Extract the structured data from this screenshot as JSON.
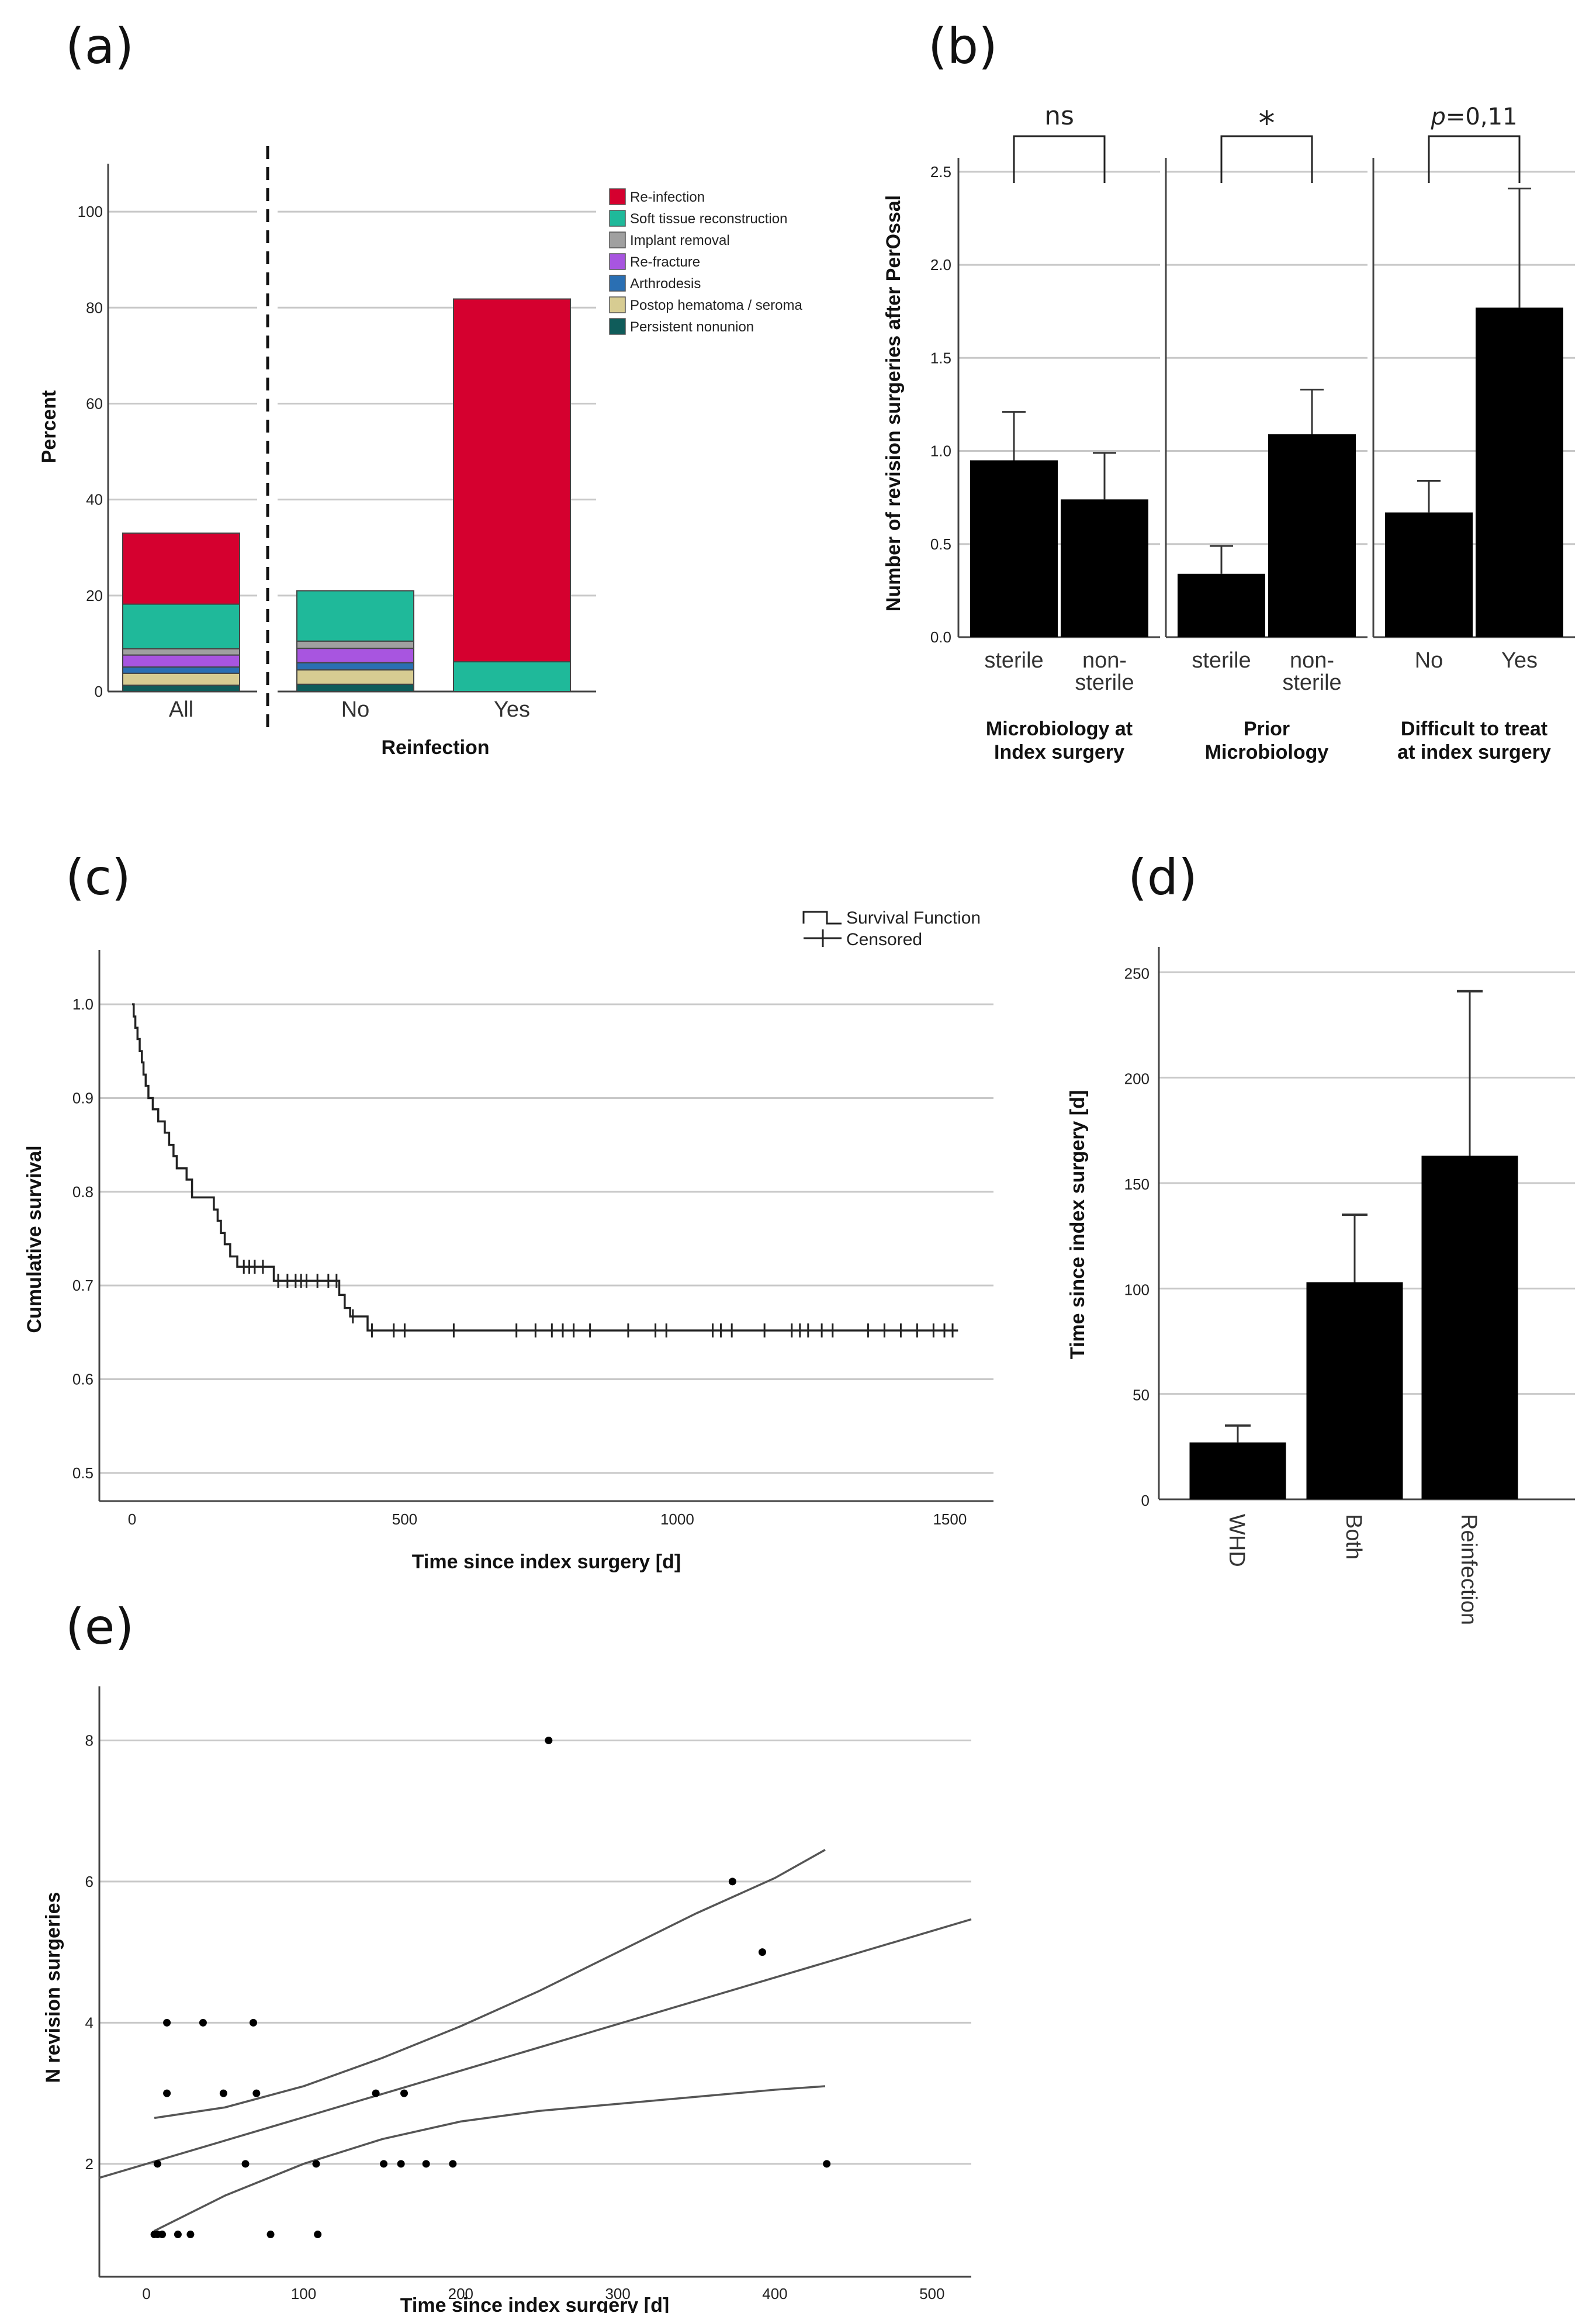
{
  "panels": {
    "a": {
      "letter": "(a)",
      "chart_data": {
        "type": "bar",
        "stacked": true,
        "categories": [
          "All",
          "No",
          "Yes"
        ],
        "group_label": "Reinfection",
        "ylabel": "Percent",
        "ylim": [
          0,
          110
        ],
        "yticks": [
          0,
          20,
          40,
          60,
          80,
          100
        ],
        "legend_placement": "top-right",
        "series": [
          {
            "name": "Persistent nonunion",
            "color": "#0f5c5a",
            "values": [
              1.3,
              1.5,
              0
            ]
          },
          {
            "name": "Postop hematoma / seroma",
            "color": "#d7cc92",
            "values": [
              2.5,
              3.0,
              0
            ]
          },
          {
            "name": "Arthrodesis",
            "color": "#2a6fb3",
            "values": [
              1.3,
              1.5,
              0
            ]
          },
          {
            "name": "Re-fracture",
            "color": "#a855e0",
            "values": [
              2.5,
              3.0,
              0
            ]
          },
          {
            "name": "Implant removal",
            "color": "#a0a0a0",
            "values": [
              1.3,
              1.5,
              0
            ]
          },
          {
            "name": "Soft tissue reconstruction",
            "color": "#1fb99a",
            "values": [
              9.3,
              10.5,
              6.2
            ]
          },
          {
            "name": "Re-infection",
            "color": "#d5002f",
            "values": [
              14.8,
              0,
              75.6
            ]
          }
        ]
      }
    },
    "b": {
      "letter": "(b)",
      "chart_data": {
        "type": "bar",
        "ylabel": "Number of revision surgeries after PerOssal",
        "ylim": [
          0,
          2.6
        ],
        "yticks": [
          "0.0",
          "0.5",
          "1.0",
          "1.5",
          "2.0",
          "2.5"
        ],
        "groups": [
          {
            "title_lines": [
              "Microbiology at",
              "Index surgery"
            ],
            "significance": "ns",
            "bars": [
              {
                "label_lines": [
                  "sterile"
                ],
                "value": 0.95,
                "error": 0.26
              },
              {
                "label_lines": [
                  "non-",
                  "sterile"
                ],
                "value": 0.74,
                "error": 0.25
              }
            ]
          },
          {
            "title_lines": [
              "Prior",
              "Microbiology"
            ],
            "significance": "*",
            "bars": [
              {
                "label_lines": [
                  "sterile"
                ],
                "value": 0.34,
                "error": 0.15
              },
              {
                "label_lines": [
                  "non-",
                  "sterile"
                ],
                "value": 1.09,
                "error": 0.24
              }
            ]
          },
          {
            "title_lines": [
              "Difficult to treat",
              "at index surgery"
            ],
            "significance": "p=0,11",
            "bars": [
              {
                "label_lines": [
                  "No"
                ],
                "value": 0.67,
                "error": 0.17
              },
              {
                "label_lines": [
                  "Yes"
                ],
                "value": 1.77,
                "error": 0.64
              }
            ]
          }
        ]
      }
    },
    "c": {
      "letter": "(c)",
      "chart_data": {
        "type": "line",
        "subtype": "kaplan-meier",
        "xlabel": "Time since index surgery [d]",
        "ylabel": "Cumulative survival",
        "xlim": [
          -60,
          1580
        ],
        "ylim": [
          0.47,
          1.03
        ],
        "xticks": [
          0,
          500,
          1000,
          1500
        ],
        "yticks": [
          "0.5",
          "0.6",
          "0.7",
          "0.8",
          "0.9",
          "1.0"
        ],
        "legend": [
          "Survival Function",
          "Censored"
        ],
        "legend_placement": "top-right",
        "steps": [
          [
            0,
            1.0
          ],
          [
            3,
            0.987
          ],
          [
            6,
            0.975
          ],
          [
            10,
            0.963
          ],
          [
            14,
            0.95
          ],
          [
            18,
            0.938
          ],
          [
            21,
            0.925
          ],
          [
            25,
            0.913
          ],
          [
            30,
            0.9
          ],
          [
            38,
            0.888
          ],
          [
            48,
            0.875
          ],
          [
            60,
            0.863
          ],
          [
            68,
            0.85
          ],
          [
            76,
            0.838
          ],
          [
            82,
            0.825
          ],
          [
            100,
            0.813
          ],
          [
            110,
            0.794
          ],
          [
            150,
            0.781
          ],
          [
            157,
            0.769
          ],
          [
            163,
            0.756
          ],
          [
            170,
            0.744
          ],
          [
            180,
            0.731
          ],
          [
            193,
            0.72
          ],
          [
            260,
            0.705
          ],
          [
            380,
            0.69
          ],
          [
            390,
            0.676
          ],
          [
            400,
            0.667
          ],
          [
            432,
            0.652
          ],
          [
            1515,
            0.652
          ]
        ],
        "censored": [
          [
            205,
            0.72
          ],
          [
            215,
            0.72
          ],
          [
            225,
            0.72
          ],
          [
            240,
            0.72
          ],
          [
            268,
            0.705
          ],
          [
            285,
            0.705
          ],
          [
            300,
            0.705
          ],
          [
            310,
            0.705
          ],
          [
            320,
            0.705
          ],
          [
            340,
            0.705
          ],
          [
            360,
            0.705
          ],
          [
            375,
            0.705
          ],
          [
            405,
            0.667
          ],
          [
            440,
            0.652
          ],
          [
            480,
            0.652
          ],
          [
            500,
            0.652
          ],
          [
            590,
            0.652
          ],
          [
            705,
            0.652
          ],
          [
            740,
            0.652
          ],
          [
            770,
            0.652
          ],
          [
            790,
            0.652
          ],
          [
            810,
            0.652
          ],
          [
            840,
            0.652
          ],
          [
            910,
            0.652
          ],
          [
            960,
            0.652
          ],
          [
            980,
            0.652
          ],
          [
            1065,
            0.652
          ],
          [
            1080,
            0.652
          ],
          [
            1100,
            0.652
          ],
          [
            1160,
            0.652
          ],
          [
            1210,
            0.652
          ],
          [
            1225,
            0.652
          ],
          [
            1240,
            0.652
          ],
          [
            1265,
            0.652
          ],
          [
            1285,
            0.652
          ],
          [
            1350,
            0.652
          ],
          [
            1380,
            0.652
          ],
          [
            1410,
            0.652
          ],
          [
            1440,
            0.652
          ],
          [
            1470,
            0.652
          ],
          [
            1490,
            0.652
          ],
          [
            1505,
            0.652
          ]
        ]
      }
    },
    "d": {
      "letter": "(d)",
      "chart_data": {
        "type": "bar",
        "categories": [
          "WHD",
          "Both",
          "Reinfection"
        ],
        "values": [
          27,
          103,
          163
        ],
        "errors": [
          8,
          32,
          78
        ],
        "ylabel": "Time since index surgery [d]",
        "ylim": [
          0,
          262
        ],
        "yticks": [
          0,
          50,
          100,
          150,
          200,
          250
        ]
      }
    },
    "e": {
      "letter": "(e)",
      "chart_data": {
        "type": "scatter",
        "xlabel": "Time since index surgery [d]",
        "ylabel": "N revision surgeries",
        "xlim": [
          -30,
          525
        ],
        "ylim": [
          0.4,
          8.6
        ],
        "xticks": [
          0,
          100,
          200,
          300,
          400,
          500
        ],
        "yticks": [
          2,
          4,
          6,
          8
        ],
        "points": [
          [
            5,
            1
          ],
          [
            7,
            1
          ],
          [
            10,
            1
          ],
          [
            20,
            1
          ],
          [
            28,
            1
          ],
          [
            79,
            1
          ],
          [
            109,
            1
          ],
          [
            7,
            2
          ],
          [
            63,
            2
          ],
          [
            108,
            2
          ],
          [
            151,
            2
          ],
          [
            162,
            2
          ],
          [
            178,
            2
          ],
          [
            195,
            2
          ],
          [
            433,
            2
          ],
          [
            13,
            3
          ],
          [
            49,
            3
          ],
          [
            70,
            3
          ],
          [
            146,
            3
          ],
          [
            164,
            3
          ],
          [
            13,
            4
          ],
          [
            36,
            4
          ],
          [
            68,
            4
          ],
          [
            392,
            5
          ],
          [
            373,
            6
          ],
          [
            256,
            8
          ]
        ],
        "fit_line": {
          "intercept": 2.0,
          "slope": 0.0066
        },
        "ci_upper": [
          [
            5,
            2.65
          ],
          [
            50,
            2.8
          ],
          [
            100,
            3.1
          ],
          [
            150,
            3.5
          ],
          [
            200,
            3.95
          ],
          [
            250,
            4.45
          ],
          [
            300,
            5.0
          ],
          [
            350,
            5.55
          ],
          [
            400,
            6.05
          ],
          [
            432,
            6.45
          ]
        ],
        "ci_lower": [
          [
            5,
            1.05
          ],
          [
            50,
            1.55
          ],
          [
            100,
            2.0
          ],
          [
            150,
            2.35
          ],
          [
            200,
            2.6
          ],
          [
            250,
            2.75
          ],
          [
            300,
            2.85
          ],
          [
            350,
            2.95
          ],
          [
            400,
            3.05
          ],
          [
            432,
            3.1
          ]
        ]
      }
    }
  }
}
